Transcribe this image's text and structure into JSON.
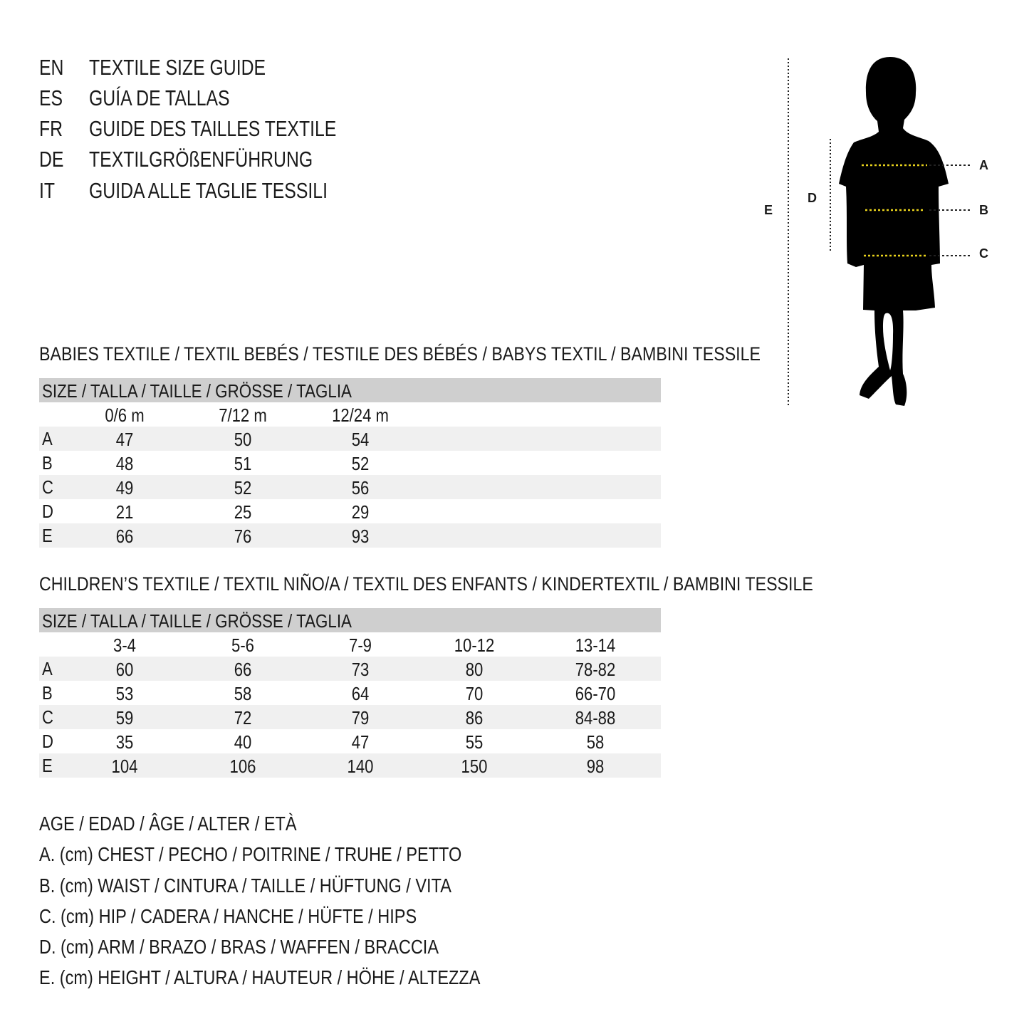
{
  "header": {
    "lines": [
      {
        "lang": "EN",
        "text": "TEXTILE SIZE GUIDE"
      },
      {
        "lang": "ES",
        "text": "GUÍA DE TALLAS"
      },
      {
        "lang": "FR",
        "text": "GUIDE DES TAILLES TEXTILE"
      },
      {
        "lang": "DE",
        "text": "TEXTILGRÖßENFÜHRUNG"
      },
      {
        "lang": "IT",
        "text": "GUIDA ALLE TAGLIE TESSILI"
      }
    ]
  },
  "figure": {
    "labels": {
      "a": "A",
      "b": "B",
      "c": "C",
      "d": "D",
      "e": "E"
    },
    "colors": {
      "silhouette": "#000000",
      "measure_line": "#e8d21c",
      "guide_line": "#222222"
    }
  },
  "babies": {
    "title": "BABIES TEXTILE / TEXTIL BEBÉS / TESTILE DES BÉBÉS / BABYS TEXTIL / BAMBINI TESSILE",
    "size_header": "SIZE / TALLA / TAILLE / GRÖSSE / TAGLIA",
    "columns": [
      "0/6 m",
      "7/12 m",
      "12/24 m"
    ],
    "rows": [
      {
        "label": "A",
        "values": [
          "47",
          "50",
          "54"
        ]
      },
      {
        "label": "B",
        "values": [
          "48",
          "51",
          "52"
        ]
      },
      {
        "label": "C",
        "values": [
          "49",
          "52",
          "56"
        ]
      },
      {
        "label": "D",
        "values": [
          "21",
          "25",
          "29"
        ]
      },
      {
        "label": "E",
        "values": [
          "66",
          "76",
          "93"
        ]
      }
    ]
  },
  "children": {
    "title": "CHILDREN’S TEXTILE / TEXTIL NIÑO/A / TEXTIL DES ENFANTS / KINDERTEXTIL / BAMBINI TESSILE",
    "size_header": "SIZE / TALLA / TAILLE / GRÖSSE / TAGLIA",
    "columns": [
      "3-4",
      "5-6",
      "7-9",
      "10-12",
      "13-14"
    ],
    "rows": [
      {
        "label": "A",
        "values": [
          "60",
          "66",
          "73",
          "80",
          "78-82"
        ]
      },
      {
        "label": "B",
        "values": [
          "53",
          "58",
          "64",
          "70",
          "66-70"
        ]
      },
      {
        "label": "C",
        "values": [
          "59",
          "72",
          "79",
          "86",
          "84-88"
        ]
      },
      {
        "label": "D",
        "values": [
          "35",
          "40",
          "47",
          "55",
          "58"
        ]
      },
      {
        "label": "E",
        "values": [
          "104",
          "106",
          "140",
          "150",
          "98"
        ]
      }
    ]
  },
  "legend": {
    "age": "AGE / EDAD / ÂGE / ALTER / ETÀ",
    "items": [
      "A. (cm) CHEST / PECHO / POITRINE / TRUHE / PETTO",
      "B. (cm) WAIST / CINTURA / TAILLE / HÜFTUNG / VITA",
      "C. (cm) HIP / CADERA / HANCHE / HÜFTE / HIPS",
      "D. (cm) ARM / BRAZO / BRAS / WAFFEN / BRACCIA",
      "E. (cm) HEIGHT / ALTURA / HAUTEUR / HÖHE / ALTEZZA"
    ]
  }
}
